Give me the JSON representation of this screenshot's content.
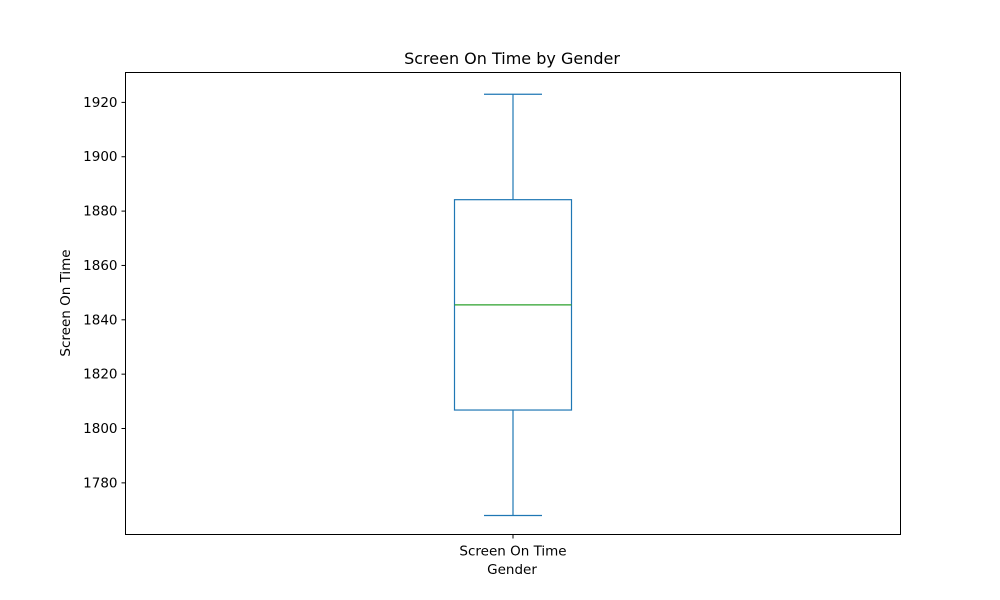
{
  "chart_data": {
    "type": "box",
    "title": "Screen On Time by Gender",
    "xlabel": "Gender",
    "ylabel": "Screen On Time",
    "categories": [
      "Screen On Time"
    ],
    "ylim": [
      1761,
      1931
    ],
    "yticks": [
      1780,
      1800,
      1820,
      1840,
      1860,
      1880,
      1900,
      1920
    ],
    "grid": false,
    "series": [
      {
        "values": [
          {
            "whisker_low": 1768,
            "q1": 1806.8,
            "median": 1845.5,
            "q3": 1884.2,
            "whisker_high": 1923
          }
        ]
      }
    ],
    "colors": {
      "box": "#1f77b4",
      "median": "#2ca02c",
      "axis": "#000000"
    }
  }
}
